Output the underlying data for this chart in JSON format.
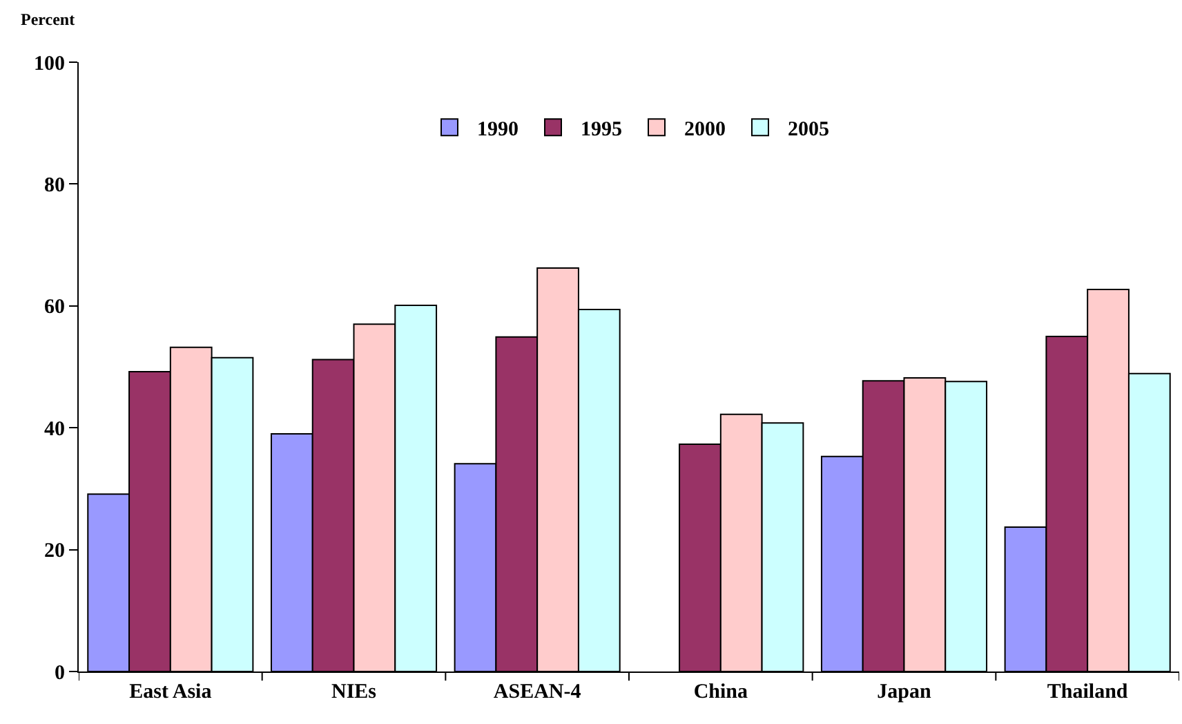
{
  "chart_data": {
    "type": "bar",
    "ylabel": "Percent",
    "categories": [
      "East Asia",
      "NIEs",
      "ASEAN-4",
      "China",
      "Japan",
      "Thailand"
    ],
    "series": [
      {
        "name": "1990",
        "color": "#9999ff",
        "values": [
          29.1,
          39.0,
          34.1,
          null,
          35.3,
          23.7
        ]
      },
      {
        "name": "1995",
        "color": "#993366",
        "values": [
          49.2,
          51.2,
          54.9,
          37.3,
          47.7,
          55.0
        ]
      },
      {
        "name": "2000",
        "color": "#ffcccc",
        "values": [
          53.2,
          57.0,
          66.2,
          42.2,
          48.2,
          62.7
        ]
      },
      {
        "name": "2005",
        "color": "#ccffff",
        "values": [
          51.5,
          60.1,
          59.4,
          40.8,
          47.6,
          48.9
        ]
      }
    ],
    "ylim": [
      0,
      100
    ],
    "yticks": [
      0,
      20,
      40,
      60,
      80,
      100
    ],
    "legend": "top"
  }
}
